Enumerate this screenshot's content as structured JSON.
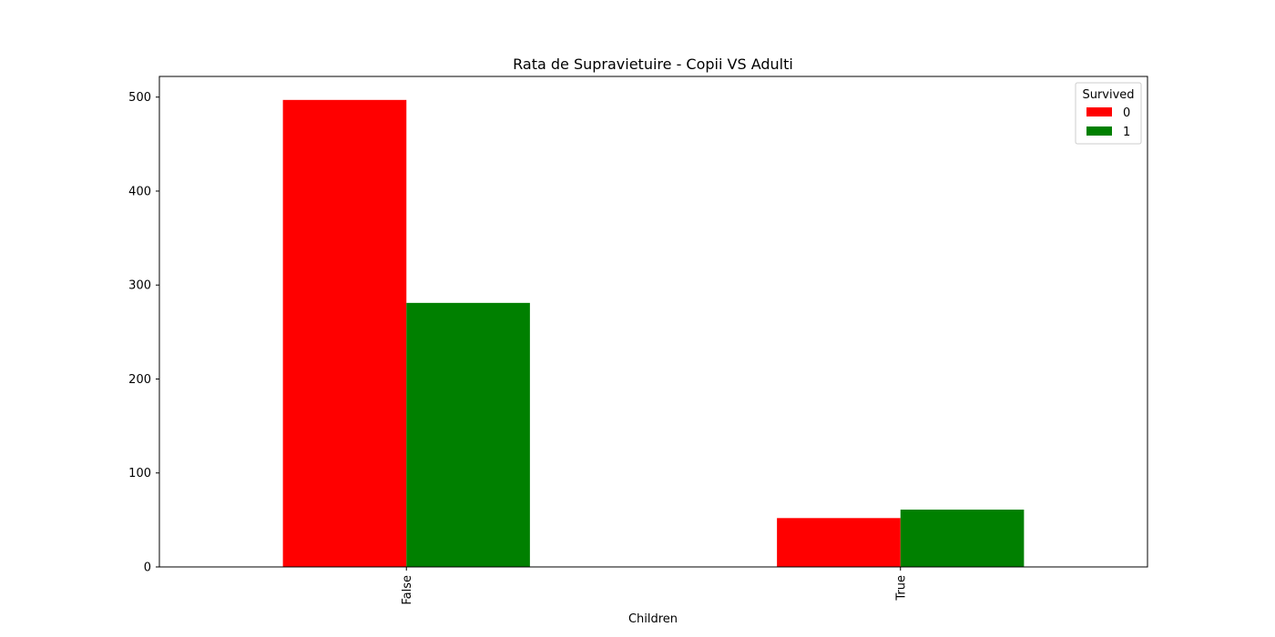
{
  "chart_data": {
    "type": "bar",
    "title": "Rata de Supravietuire - Copii VS Adulti",
    "xlabel": "Children",
    "ylabel": "",
    "categories": [
      "False",
      "True"
    ],
    "series": [
      {
        "name": "0",
        "values": [
          497,
          52
        ],
        "color": "#ff0000"
      },
      {
        "name": "1",
        "values": [
          281,
          61
        ],
        "color": "#008000"
      }
    ],
    "ylim": [
      0,
      522
    ],
    "yticks": [
      0,
      100,
      200,
      300,
      400,
      500
    ],
    "legend": {
      "title": "Survived",
      "placement": "top-right"
    },
    "grid": false
  }
}
